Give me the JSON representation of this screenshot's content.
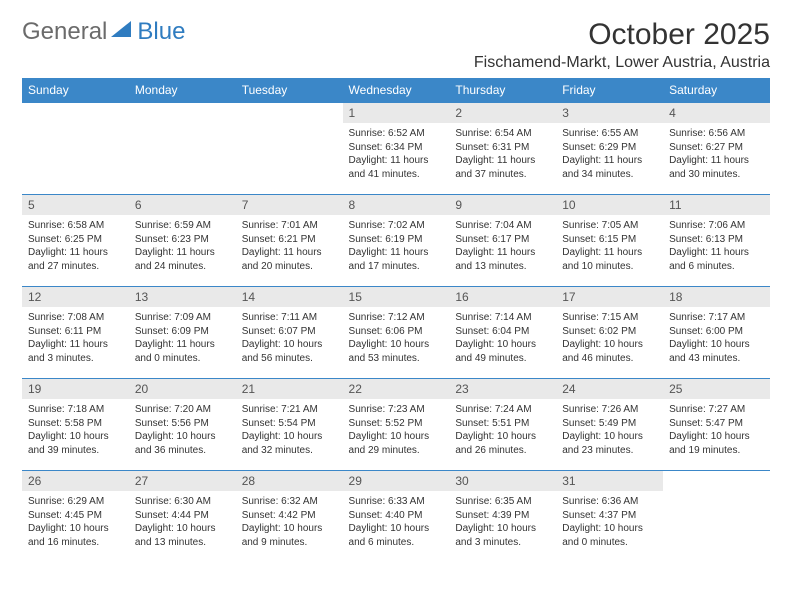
{
  "brand": {
    "general": "General",
    "blue": "Blue"
  },
  "title": "October 2025",
  "location": "Fischamend-Markt, Lower Austria, Austria",
  "colors": {
    "header_bg": "#3b87c8",
    "header_fg": "#ffffff",
    "daynum_bg": "#e9e9e9",
    "row_border": "#3b87c8",
    "brand_grey": "#6b6b6b",
    "brand_blue": "#2f7cc0"
  },
  "weekdays": [
    "Sunday",
    "Monday",
    "Tuesday",
    "Wednesday",
    "Thursday",
    "Friday",
    "Saturday"
  ],
  "weeks": [
    [
      {
        "n": "",
        "sr": "",
        "ss": "",
        "dl": ""
      },
      {
        "n": "",
        "sr": "",
        "ss": "",
        "dl": ""
      },
      {
        "n": "",
        "sr": "",
        "ss": "",
        "dl": ""
      },
      {
        "n": "1",
        "sr": "Sunrise: 6:52 AM",
        "ss": "Sunset: 6:34 PM",
        "dl": "Daylight: 11 hours and 41 minutes."
      },
      {
        "n": "2",
        "sr": "Sunrise: 6:54 AM",
        "ss": "Sunset: 6:31 PM",
        "dl": "Daylight: 11 hours and 37 minutes."
      },
      {
        "n": "3",
        "sr": "Sunrise: 6:55 AM",
        "ss": "Sunset: 6:29 PM",
        "dl": "Daylight: 11 hours and 34 minutes."
      },
      {
        "n": "4",
        "sr": "Sunrise: 6:56 AM",
        "ss": "Sunset: 6:27 PM",
        "dl": "Daylight: 11 hours and 30 minutes."
      }
    ],
    [
      {
        "n": "5",
        "sr": "Sunrise: 6:58 AM",
        "ss": "Sunset: 6:25 PM",
        "dl": "Daylight: 11 hours and 27 minutes."
      },
      {
        "n": "6",
        "sr": "Sunrise: 6:59 AM",
        "ss": "Sunset: 6:23 PM",
        "dl": "Daylight: 11 hours and 24 minutes."
      },
      {
        "n": "7",
        "sr": "Sunrise: 7:01 AM",
        "ss": "Sunset: 6:21 PM",
        "dl": "Daylight: 11 hours and 20 minutes."
      },
      {
        "n": "8",
        "sr": "Sunrise: 7:02 AM",
        "ss": "Sunset: 6:19 PM",
        "dl": "Daylight: 11 hours and 17 minutes."
      },
      {
        "n": "9",
        "sr": "Sunrise: 7:04 AM",
        "ss": "Sunset: 6:17 PM",
        "dl": "Daylight: 11 hours and 13 minutes."
      },
      {
        "n": "10",
        "sr": "Sunrise: 7:05 AM",
        "ss": "Sunset: 6:15 PM",
        "dl": "Daylight: 11 hours and 10 minutes."
      },
      {
        "n": "11",
        "sr": "Sunrise: 7:06 AM",
        "ss": "Sunset: 6:13 PM",
        "dl": "Daylight: 11 hours and 6 minutes."
      }
    ],
    [
      {
        "n": "12",
        "sr": "Sunrise: 7:08 AM",
        "ss": "Sunset: 6:11 PM",
        "dl": "Daylight: 11 hours and 3 minutes."
      },
      {
        "n": "13",
        "sr": "Sunrise: 7:09 AM",
        "ss": "Sunset: 6:09 PM",
        "dl": "Daylight: 11 hours and 0 minutes."
      },
      {
        "n": "14",
        "sr": "Sunrise: 7:11 AM",
        "ss": "Sunset: 6:07 PM",
        "dl": "Daylight: 10 hours and 56 minutes."
      },
      {
        "n": "15",
        "sr": "Sunrise: 7:12 AM",
        "ss": "Sunset: 6:06 PM",
        "dl": "Daylight: 10 hours and 53 minutes."
      },
      {
        "n": "16",
        "sr": "Sunrise: 7:14 AM",
        "ss": "Sunset: 6:04 PM",
        "dl": "Daylight: 10 hours and 49 minutes."
      },
      {
        "n": "17",
        "sr": "Sunrise: 7:15 AM",
        "ss": "Sunset: 6:02 PM",
        "dl": "Daylight: 10 hours and 46 minutes."
      },
      {
        "n": "18",
        "sr": "Sunrise: 7:17 AM",
        "ss": "Sunset: 6:00 PM",
        "dl": "Daylight: 10 hours and 43 minutes."
      }
    ],
    [
      {
        "n": "19",
        "sr": "Sunrise: 7:18 AM",
        "ss": "Sunset: 5:58 PM",
        "dl": "Daylight: 10 hours and 39 minutes."
      },
      {
        "n": "20",
        "sr": "Sunrise: 7:20 AM",
        "ss": "Sunset: 5:56 PM",
        "dl": "Daylight: 10 hours and 36 minutes."
      },
      {
        "n": "21",
        "sr": "Sunrise: 7:21 AM",
        "ss": "Sunset: 5:54 PM",
        "dl": "Daylight: 10 hours and 32 minutes."
      },
      {
        "n": "22",
        "sr": "Sunrise: 7:23 AM",
        "ss": "Sunset: 5:52 PM",
        "dl": "Daylight: 10 hours and 29 minutes."
      },
      {
        "n": "23",
        "sr": "Sunrise: 7:24 AM",
        "ss": "Sunset: 5:51 PM",
        "dl": "Daylight: 10 hours and 26 minutes."
      },
      {
        "n": "24",
        "sr": "Sunrise: 7:26 AM",
        "ss": "Sunset: 5:49 PM",
        "dl": "Daylight: 10 hours and 23 minutes."
      },
      {
        "n": "25",
        "sr": "Sunrise: 7:27 AM",
        "ss": "Sunset: 5:47 PM",
        "dl": "Daylight: 10 hours and 19 minutes."
      }
    ],
    [
      {
        "n": "26",
        "sr": "Sunrise: 6:29 AM",
        "ss": "Sunset: 4:45 PM",
        "dl": "Daylight: 10 hours and 16 minutes."
      },
      {
        "n": "27",
        "sr": "Sunrise: 6:30 AM",
        "ss": "Sunset: 4:44 PM",
        "dl": "Daylight: 10 hours and 13 minutes."
      },
      {
        "n": "28",
        "sr": "Sunrise: 6:32 AM",
        "ss": "Sunset: 4:42 PM",
        "dl": "Daylight: 10 hours and 9 minutes."
      },
      {
        "n": "29",
        "sr": "Sunrise: 6:33 AM",
        "ss": "Sunset: 4:40 PM",
        "dl": "Daylight: 10 hours and 6 minutes."
      },
      {
        "n": "30",
        "sr": "Sunrise: 6:35 AM",
        "ss": "Sunset: 4:39 PM",
        "dl": "Daylight: 10 hours and 3 minutes."
      },
      {
        "n": "31",
        "sr": "Sunrise: 6:36 AM",
        "ss": "Sunset: 4:37 PM",
        "dl": "Daylight: 10 hours and 0 minutes."
      },
      {
        "n": "",
        "sr": "",
        "ss": "",
        "dl": ""
      }
    ]
  ]
}
